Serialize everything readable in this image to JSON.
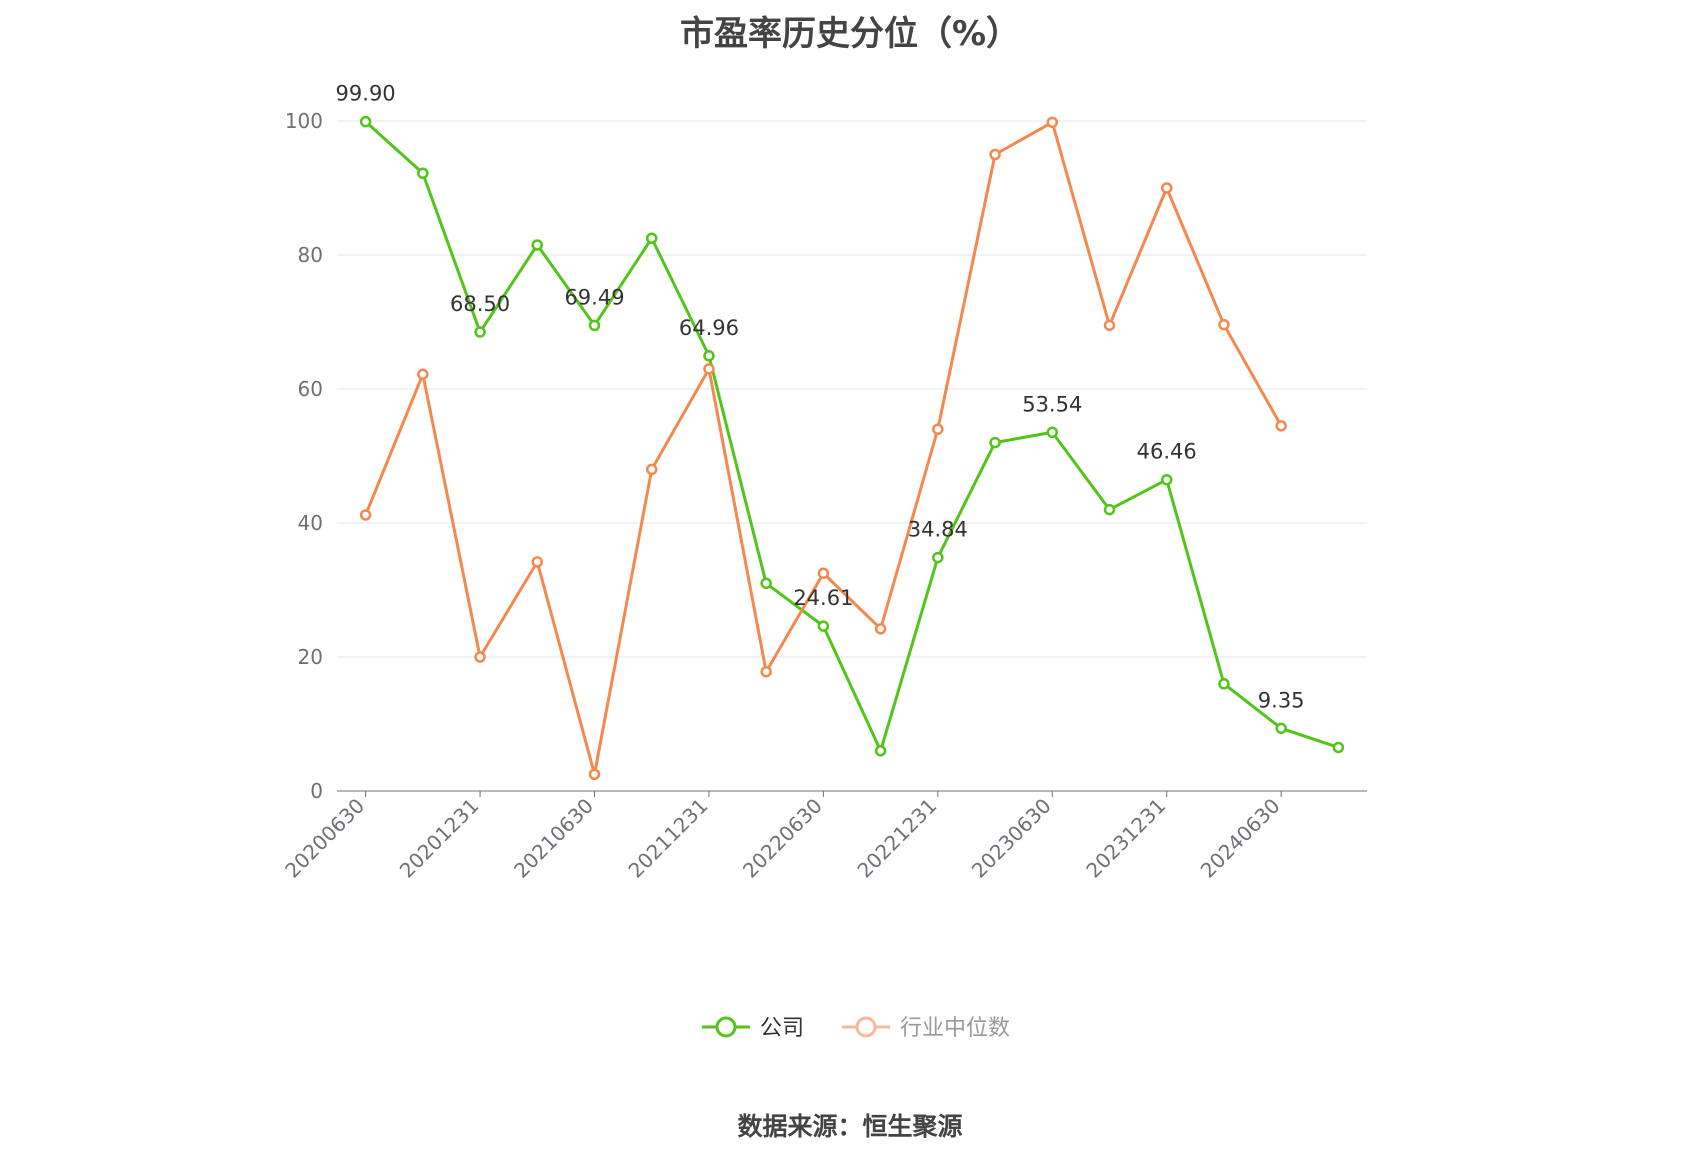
{
  "title": "市盈率历史分位（%）",
  "source": "数据来源：恒生聚源",
  "chart_data": {
    "type": "line",
    "title": "市盈率历史分位（%）",
    "x": [
      "20200630",
      "20200930",
      "20201231",
      "20210331",
      "20210630",
      "20210930",
      "20211231",
      "20220331",
      "20220630",
      "20220930",
      "20221231",
      "20230331",
      "20230630",
      "20230930",
      "20231231",
      "20240331",
      "20240630",
      "20240930"
    ],
    "x_tick_labels": [
      "20200630",
      "20201231",
      "20210630",
      "20211231",
      "20220630",
      "20221231",
      "20230630",
      "20231231",
      "20240630"
    ],
    "ylim": [
      0,
      100
    ],
    "y_ticks": [
      0,
      20,
      40,
      60,
      80,
      100
    ],
    "grid": true,
    "legend_position": "bottom",
    "series": [
      {
        "name": "公司",
        "color": "#52c41a",
        "values": [
          99.9,
          92.2,
          68.5,
          81.5,
          69.49,
          82.5,
          64.96,
          31.0,
          24.61,
          6.0,
          34.84,
          52.0,
          53.54,
          42.0,
          46.46,
          16.0,
          9.35,
          6.5
        ],
        "labels": {
          "0": "99.90",
          "2": "68.50",
          "4": "69.49",
          "6": "64.96",
          "8": "24.61",
          "10": "34.84",
          "12": "53.54",
          "14": "46.46",
          "16": "9.35"
        }
      },
      {
        "name": "行业中位数",
        "color": "#f5884f",
        "values": [
          41.2,
          62.2,
          20.0,
          34.2,
          2.5,
          48.0,
          63.0,
          17.8,
          32.5,
          24.2,
          54.0,
          95.0,
          99.8,
          69.5,
          90.0,
          69.6,
          54.5,
          null
        ]
      }
    ]
  }
}
